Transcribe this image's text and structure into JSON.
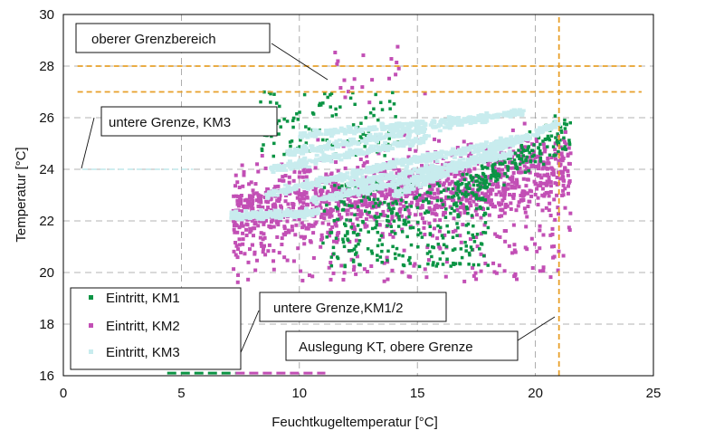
{
  "chart_data": {
    "type": "scatter",
    "xlabel": "Feuchtkugeltemperatur [°C]",
    "ylabel": "Temperatur [°C]",
    "xlim": [
      0,
      25
    ],
    "ylim": [
      16,
      30
    ],
    "xticks": [
      0,
      5,
      10,
      15,
      20,
      25
    ],
    "yticks": [
      16,
      18,
      20,
      22,
      24,
      26,
      28,
      30
    ],
    "grid": true,
    "legend_position": "bottom-left",
    "series": [
      {
        "name": "Eintritt, KM1",
        "color": "#0b9444",
        "cluster": {
          "x_range": [
            7.8,
            21.5
          ],
          "y_range": [
            19.7,
            27.2
          ],
          "center": [
            14.5,
            23.0
          ]
        }
      },
      {
        "name": "Eintritt, KM2",
        "color": "#c24fb5",
        "cluster": {
          "x_range": [
            7.0,
            21.7
          ],
          "y_range": [
            19.5,
            28.9
          ],
          "center": [
            14.0,
            24.0
          ]
        }
      },
      {
        "name": "Eintritt, KM3",
        "color": "#c8ecee",
        "cluster": {
          "x_range": [
            7.1,
            21.2
          ],
          "y_range": [
            22.1,
            26.3
          ],
          "center": [
            14.5,
            24.2
          ]
        }
      }
    ],
    "reference_lines": [
      {
        "orientation": "horizontal",
        "y": 28.0,
        "x_range": [
          0.6,
          24.5
        ],
        "color": "#e8a02a",
        "style": "dashed"
      },
      {
        "orientation": "horizontal",
        "y": 27.0,
        "x_range": [
          0.6,
          24.5
        ],
        "color": "#e8a02a",
        "style": "dashed"
      },
      {
        "orientation": "vertical",
        "x": 21.0,
        "y_range": [
          16.0,
          30.0
        ],
        "color": "#e8a02a",
        "style": "dashed"
      },
      {
        "orientation": "horizontal",
        "y": 24.0,
        "x_range": [
          0.8,
          5.5
        ],
        "color": "#c8ecee",
        "style": "dashed"
      },
      {
        "orientation": "horizontal",
        "y": 16.1,
        "x_range": [
          4.4,
          7.3
        ],
        "color": "#0b9444",
        "style": "dashed"
      },
      {
        "orientation": "horizontal",
        "y": 16.1,
        "x_range": [
          7.3,
          11.1
        ],
        "color": "#c24fb5",
        "style": "dashed"
      }
    ],
    "annotations": [
      {
        "text": "oberer Grenzbereich",
        "target": [
          11.3,
          27.4
        ]
      },
      {
        "text": "untere Grenze, KM3",
        "target": [
          0.8,
          24.0
        ]
      },
      {
        "text": "untere Grenze,KM1/2",
        "target": [
          7.3,
          16.2
        ]
      },
      {
        "text": "Auslegung KT, obere Grenze",
        "target": [
          21.0,
          18.2
        ]
      }
    ]
  }
}
